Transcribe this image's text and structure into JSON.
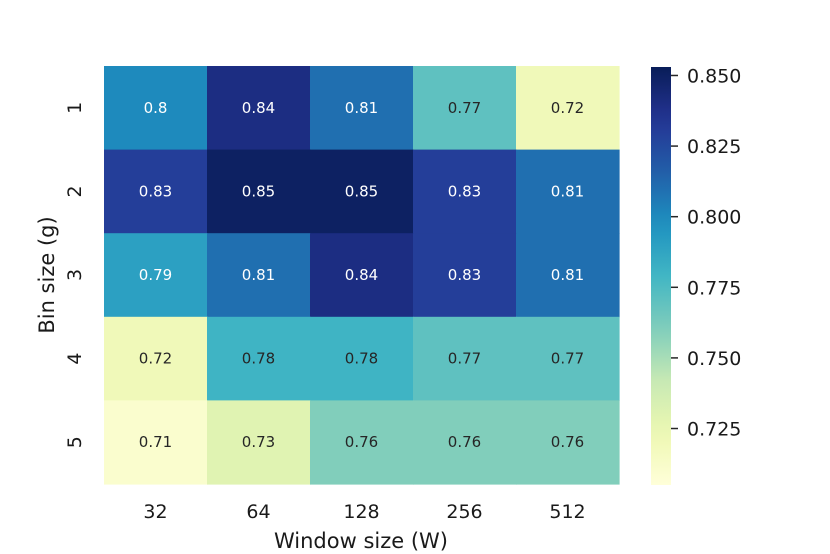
{
  "chart_data": {
    "type": "heatmap",
    "title": "",
    "xlabel": "Window size (W)",
    "ylabel": "Bin size (g)",
    "x_categories": [
      "32",
      "64",
      "128",
      "256",
      "512"
    ],
    "y_categories": [
      "1",
      "2",
      "3",
      "4",
      "5"
    ],
    "values": [
      [
        0.8,
        0.84,
        0.81,
        0.77,
        0.72
      ],
      [
        0.83,
        0.85,
        0.85,
        0.83,
        0.81
      ],
      [
        0.79,
        0.81,
        0.84,
        0.83,
        0.81
      ],
      [
        0.72,
        0.78,
        0.78,
        0.77,
        0.77
      ],
      [
        0.71,
        0.73,
        0.76,
        0.76,
        0.76
      ]
    ],
    "annotations": [
      [
        "0.8",
        "0.84",
        "0.81",
        "0.77",
        "0.72"
      ],
      [
        "0.83",
        "0.85",
        "0.85",
        "0.83",
        "0.81"
      ],
      [
        "0.79",
        "0.81",
        "0.84",
        "0.83",
        "0.81"
      ],
      [
        "0.72",
        "0.78",
        "0.78",
        "0.77",
        "0.77"
      ],
      [
        "0.71",
        "0.73",
        "0.76",
        "0.76",
        "0.76"
      ]
    ],
    "colormap": "YlGnBu",
    "vmin": 0.705,
    "vmax": 0.853,
    "colorbar": {
      "ticks": [
        0.725,
        0.75,
        0.775,
        0.8,
        0.825,
        0.85
      ],
      "tick_labels": [
        "0.725",
        "0.750",
        "0.775",
        "0.800",
        "0.825",
        "0.850"
      ]
    }
  }
}
